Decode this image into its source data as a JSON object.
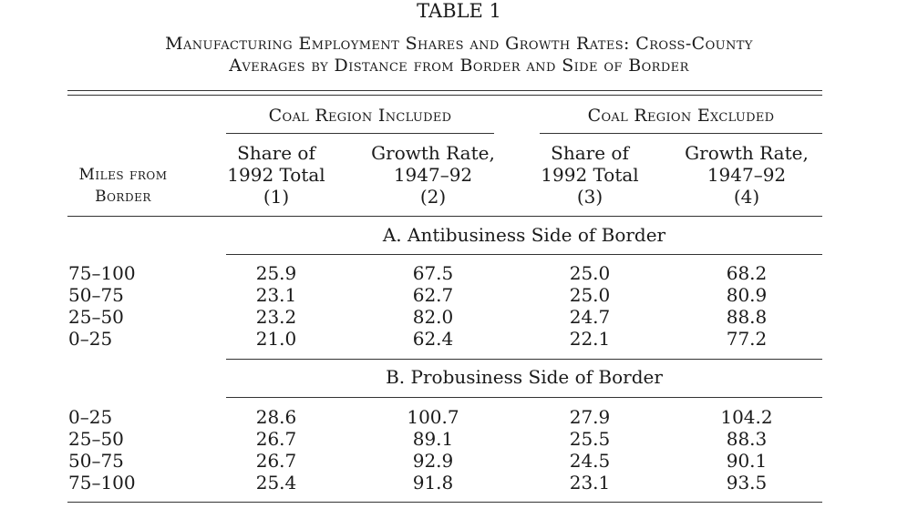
{
  "title": "TABLE 1",
  "caption_line1": "Manufacturing Employment Shares and Growth Rates: Cross-County",
  "caption_line2": "Averages by Distance from Border and Side of Border",
  "groups": [
    "Coal Region Included",
    "Coal Region Excluded"
  ],
  "row_header": [
    "Miles from",
    "Border"
  ],
  "columns": [
    [
      "Share of",
      "1992 Total",
      "(1)"
    ],
    [
      "Growth Rate,",
      "1947–92",
      "(2)"
    ],
    [
      "Share of",
      "1992 Total",
      "(3)"
    ],
    [
      "Growth Rate,",
      "1947–92",
      "(4)"
    ]
  ],
  "panels": [
    {
      "title": "A. Antibusiness Side of Border",
      "rows": [
        {
          "label": "75–100",
          "values": [
            "25.9",
            "67.5",
            "25.0",
            "68.2"
          ]
        },
        {
          "label": "50–75",
          "values": [
            "23.1",
            "62.7",
            "25.0",
            "80.9"
          ]
        },
        {
          "label": "25–50",
          "values": [
            "23.2",
            "82.0",
            "24.7",
            "88.8"
          ]
        },
        {
          "label": "0–25",
          "values": [
            "21.0",
            "62.4",
            "22.1",
            "77.2"
          ]
        }
      ]
    },
    {
      "title": "B. Probusiness Side of Border",
      "rows": [
        {
          "label": "0–25",
          "values": [
            "28.6",
            "100.7",
            "27.9",
            "104.2"
          ]
        },
        {
          "label": "25–50",
          "values": [
            "26.7",
            "89.1",
            "25.5",
            "88.3"
          ]
        },
        {
          "label": "50–75",
          "values": [
            "26.7",
            "92.9",
            "24.5",
            "90.1"
          ]
        },
        {
          "label": "75–100",
          "values": [
            "25.4",
            "91.8",
            "23.1",
            "93.5"
          ]
        }
      ]
    }
  ]
}
